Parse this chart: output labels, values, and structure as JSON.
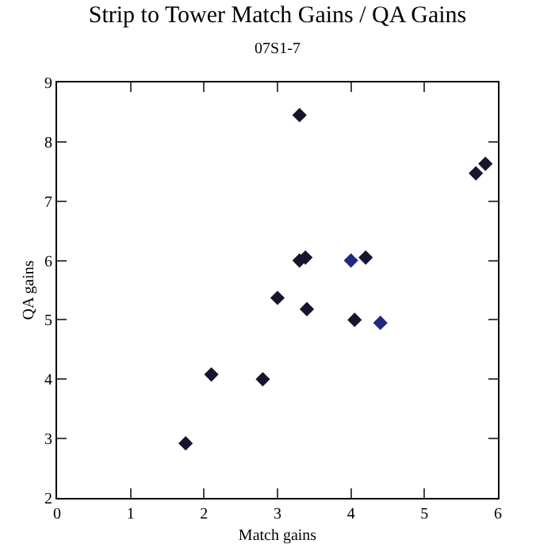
{
  "chart_data": {
    "type": "scatter",
    "title": "Strip to Tower Match Gains / QA Gains",
    "subtitle": "07S1-7",
    "xlabel": "Match gains",
    "ylabel": "QA gains",
    "x": [
      1.75,
      2.1,
      2.8,
      3.0,
      3.3,
      3.3,
      3.38,
      3.4,
      4.0,
      4.05,
      4.2,
      4.4,
      5.7,
      5.83
    ],
    "values": [
      2.92,
      4.08,
      4.0,
      5.37,
      8.45,
      6.0,
      6.05,
      5.18,
      6.0,
      5.0,
      6.05,
      4.95,
      7.47,
      7.63
    ],
    "colors": [
      "#15152e",
      "#15152e",
      "#15152e",
      "#15152e",
      "#15152e",
      "#15152e",
      "#15152e",
      "#15152e",
      "#1f2a80",
      "#15152e",
      "#15152e",
      "#1f2a80",
      "#15152e",
      "#15152e"
    ],
    "xlim": [
      0,
      6
    ],
    "xticks": [
      0,
      1,
      2,
      3,
      4,
      5,
      6
    ],
    "ylim": [
      2,
      9
    ],
    "yticks": [
      2,
      3,
      4,
      5,
      6,
      7,
      8,
      9
    ],
    "marker": "diamond",
    "grid": false,
    "legend": false
  }
}
